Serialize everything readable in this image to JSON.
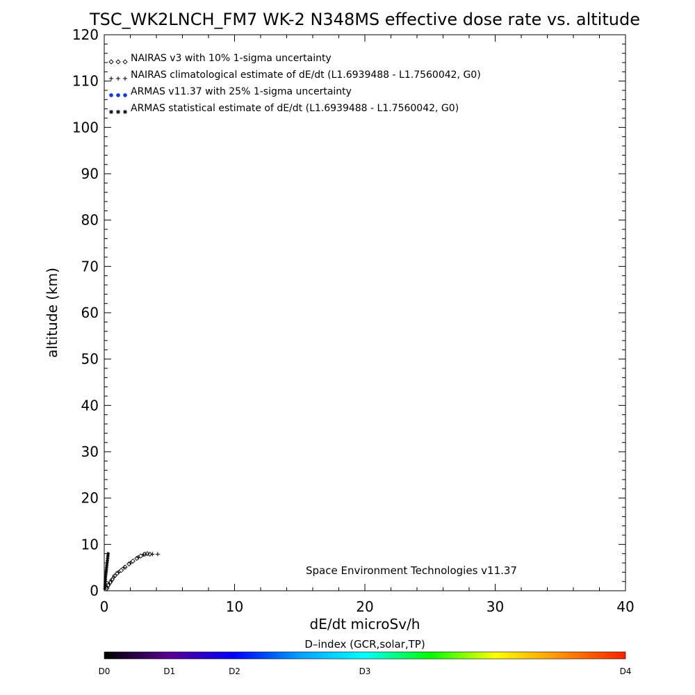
{
  "chart_data": {
    "type": "scatter",
    "title": "TSC_WK2LNCH_FM7 WK-2 N348MS effective dose rate vs. altitude",
    "xlabel": "dE/dt microSv/h",
    "ylabel": "altitude (km)",
    "xlim": [
      0,
      40
    ],
    "ylim": [
      0,
      120
    ],
    "x_ticks": [
      "0",
      "10",
      "20",
      "30",
      "40"
    ],
    "y_ticks": [
      "0",
      "10",
      "20",
      "30",
      "40",
      "50",
      "60",
      "70",
      "80",
      "90",
      "100",
      "110",
      "120"
    ],
    "legend_position": "top-left",
    "annotation": "Space Environment Technologies v11.37",
    "series": [
      {
        "name": "NAIRAS v3 with 10% 1-sigma uncertainty",
        "marker": "diamond",
        "color": "#000000",
        "points": [
          [
            0.2,
            0.5
          ],
          [
            0.3,
            1.2
          ],
          [
            0.45,
            1.8
          ],
          [
            0.6,
            2.4
          ],
          [
            0.8,
            3.2
          ],
          [
            1.0,
            3.8
          ],
          [
            1.3,
            4.4
          ],
          [
            1.6,
            5.1
          ],
          [
            1.9,
            5.8
          ],
          [
            2.2,
            6.4
          ],
          [
            2.5,
            7.0
          ],
          [
            2.8,
            7.5
          ],
          [
            3.1,
            7.9
          ],
          [
            3.3,
            8.0
          ],
          [
            3.5,
            7.9
          ]
        ]
      },
      {
        "name": "NAIRAS climatological estimate of dE/dt (L1.6939488 - L1.7560042, G0)",
        "marker": "plus",
        "color": "#000000",
        "points": [
          [
            0.25,
            0.8
          ],
          [
            0.4,
            1.5
          ],
          [
            0.55,
            2.2
          ],
          [
            0.75,
            3.0
          ],
          [
            1.1,
            4.0
          ],
          [
            1.5,
            5.0
          ],
          [
            2.0,
            6.0
          ],
          [
            2.6,
            7.2
          ],
          [
            3.0,
            7.8
          ],
          [
            3.7,
            7.9
          ],
          [
            4.1,
            7.9
          ]
        ]
      },
      {
        "name": "ARMAS v11.37 with 25% 1-sigma uncertainty",
        "marker": "dot",
        "color": "#1a3dd6",
        "points": []
      },
      {
        "name": "ARMAS statistical estimate of dE/dt (L1.6939488 - L1.7560042, G0)",
        "marker": "asterisk",
        "color": "#000000",
        "points": [
          [
            0.05,
            0.5
          ],
          [
            0.06,
            1.0
          ],
          [
            0.07,
            1.5
          ],
          [
            0.08,
            2.0
          ],
          [
            0.09,
            2.5
          ],
          [
            0.1,
            3.0
          ],
          [
            0.12,
            3.5
          ],
          [
            0.14,
            4.0
          ],
          [
            0.16,
            4.5
          ],
          [
            0.18,
            5.0
          ],
          [
            0.2,
            5.5
          ],
          [
            0.22,
            6.0
          ],
          [
            0.24,
            6.5
          ],
          [
            0.26,
            7.0
          ],
          [
            0.28,
            7.5
          ],
          [
            0.3,
            8.0
          ]
        ]
      }
    ],
    "colorbar": {
      "title": "D–index (GCR,solar,TP)",
      "labels": [
        {
          "text": "D0",
          "value": 0
        },
        {
          "text": "D1",
          "value": 0.125
        },
        {
          "text": "D2",
          "value": 0.25
        },
        {
          "text": "D3",
          "value": 0.5
        },
        {
          "text": "D4",
          "value": 1.0
        }
      ],
      "colors": [
        "#000000",
        "#5a0090",
        "#0000ff",
        "#00a0ff",
        "#00ffff",
        "#00ff00",
        "#ffff00",
        "#ff9000",
        "#ff2000"
      ]
    }
  }
}
